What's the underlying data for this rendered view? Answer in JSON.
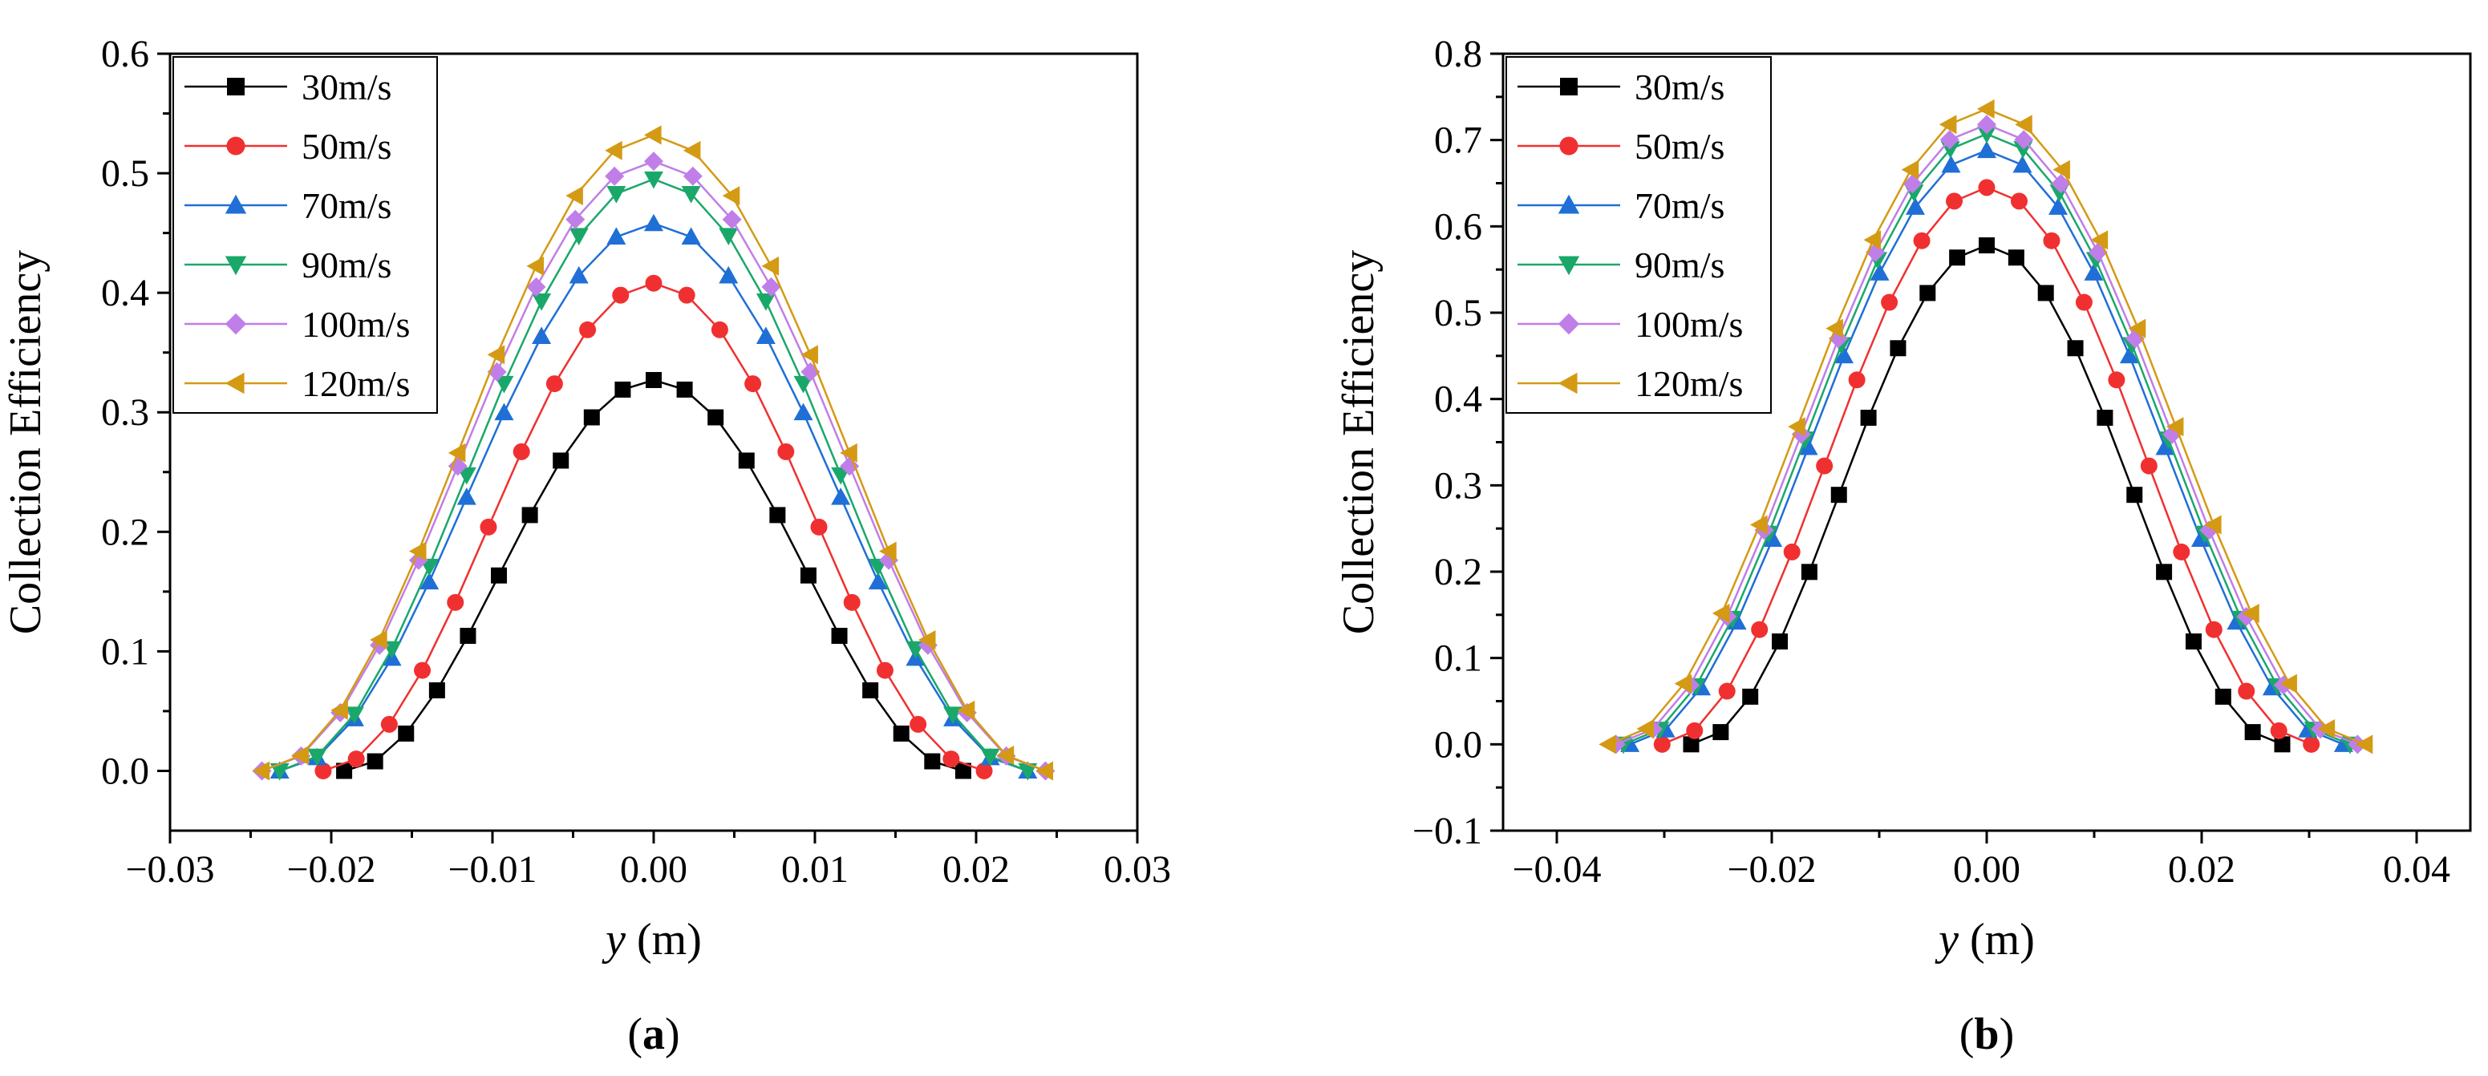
{
  "chart_data": [
    {
      "type": "line",
      "panel_label": "(a)",
      "panel_letter": "a",
      "xlabel_var": "y",
      "xlabel_unit": " (m)",
      "ylabel": "Collection Efficiency",
      "xlim": [
        -0.03,
        0.03
      ],
      "ylim": [
        -0.05,
        0.6
      ],
      "xticks": [
        -0.03,
        -0.02,
        -0.01,
        0.0,
        0.01,
        0.02,
        0.03
      ],
      "xtick_labels": [
        "−0.03",
        "−0.02",
        "−0.01",
        "0.00",
        "0.01",
        "0.02",
        "0.03"
      ],
      "yticks": [
        0.0,
        0.1,
        0.2,
        0.3,
        0.4,
        0.5,
        0.6
      ],
      "ytick_labels": [
        "0.0",
        "0.1",
        "0.2",
        "0.3",
        "0.4",
        "0.5",
        "0.6"
      ],
      "legend_position": "top-left",
      "series": [
        {
          "name": "30m/s",
          "color": "#000000",
          "marker": "square",
          "halfwidth": 0.0192,
          "peak": 0.327
        },
        {
          "name": "50m/s",
          "color": "#f03030",
          "marker": "circle",
          "halfwidth": 0.0205,
          "peak": 0.408
        },
        {
          "name": "70m/s",
          "color": "#1f6fd6",
          "marker": "triangle-up",
          "halfwidth": 0.0232,
          "peak": 0.458
        },
        {
          "name": "90m/s",
          "color": "#1aa86a",
          "marker": "triangle-down",
          "halfwidth": 0.0232,
          "peak": 0.495
        },
        {
          "name": "100m/s",
          "color": "#c07ee8",
          "marker": "diamond",
          "halfwidth": 0.0243,
          "peak": 0.51
        },
        {
          "name": "120m/s",
          "color": "#d49a14",
          "marker": "triangle-left",
          "halfwidth": 0.0243,
          "peak": 0.532
        }
      ]
    },
    {
      "type": "line",
      "panel_label": "(b)",
      "panel_letter": "b",
      "xlabel_var": "y",
      "xlabel_unit": " (m)",
      "ylabel": "Collection Efficiency",
      "xlim": [
        -0.045,
        0.045
      ],
      "ylim": [
        -0.1,
        0.8
      ],
      "xticks": [
        -0.04,
        -0.02,
        0.0,
        0.02,
        0.04
      ],
      "xtick_labels": [
        "−0.04",
        "−0.02",
        "0.00",
        "0.02",
        "0.04"
      ],
      "yticks": [
        -0.1,
        0.0,
        0.1,
        0.2,
        0.3,
        0.4,
        0.5,
        0.6,
        0.7,
        0.8
      ],
      "ytick_labels": [
        "−0.1",
        "0.0",
        "0.1",
        "0.2",
        "0.3",
        "0.4",
        "0.5",
        "0.6",
        "0.7",
        "0.8"
      ],
      "legend_position": "top-left",
      "series": [
        {
          "name": "30m/s",
          "color": "#000000",
          "marker": "square",
          "halfwidth": 0.0275,
          "peak": 0.578
        },
        {
          "name": "50m/s",
          "color": "#f03030",
          "marker": "circle",
          "halfwidth": 0.0302,
          "peak": 0.645
        },
        {
          "name": "70m/s",
          "color": "#1f6fd6",
          "marker": "triangle-up",
          "halfwidth": 0.0332,
          "peak": 0.688
        },
        {
          "name": "90m/s",
          "color": "#1aa86a",
          "marker": "triangle-down",
          "halfwidth": 0.0338,
          "peak": 0.707
        },
        {
          "name": "100m/s",
          "color": "#c07ee8",
          "marker": "diamond",
          "halfwidth": 0.0345,
          "peak": 0.718
        },
        {
          "name": "120m/s",
          "color": "#d49a14",
          "marker": "triangle-left",
          "halfwidth": 0.0352,
          "peak": 0.736
        }
      ]
    }
  ]
}
